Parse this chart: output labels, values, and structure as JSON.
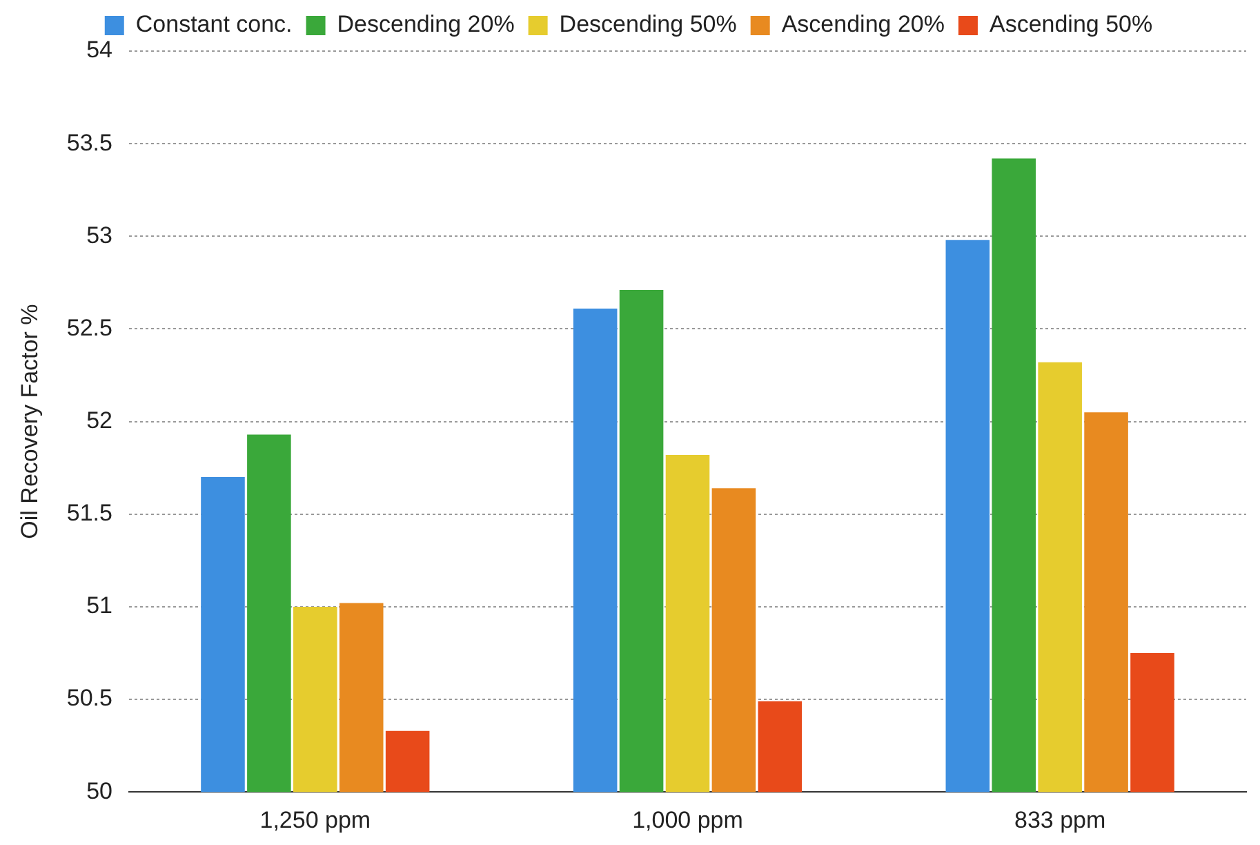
{
  "chart_data": {
    "type": "bar",
    "ylabel": "Oil Recovery Factor %",
    "categories": [
      "1,250 ppm",
      "1,000 ppm",
      "833 ppm"
    ],
    "series": [
      {
        "name": "Constant conc.",
        "color": "#3d8fe0",
        "values": [
          51.7,
          52.61,
          52.98
        ]
      },
      {
        "name": "Descending 20%",
        "color": "#3aa83a",
        "values": [
          51.93,
          52.71,
          53.42
        ]
      },
      {
        "name": "Descending 50%",
        "color": "#e6cc2e",
        "values": [
          51.0,
          51.82,
          52.32
        ]
      },
      {
        "name": "Ascending 20%",
        "color": "#e88a20",
        "values": [
          51.02,
          51.64,
          52.05
        ]
      },
      {
        "name": "Ascending 50%",
        "color": "#e84a1a",
        "values": [
          50.33,
          50.49,
          50.75
        ]
      }
    ],
    "ylim": [
      50,
      54
    ],
    "yticks": [
      50,
      50.5,
      51,
      51.5,
      52,
      52.5,
      53,
      53.5,
      54
    ],
    "grid": "y",
    "legend": "top"
  }
}
